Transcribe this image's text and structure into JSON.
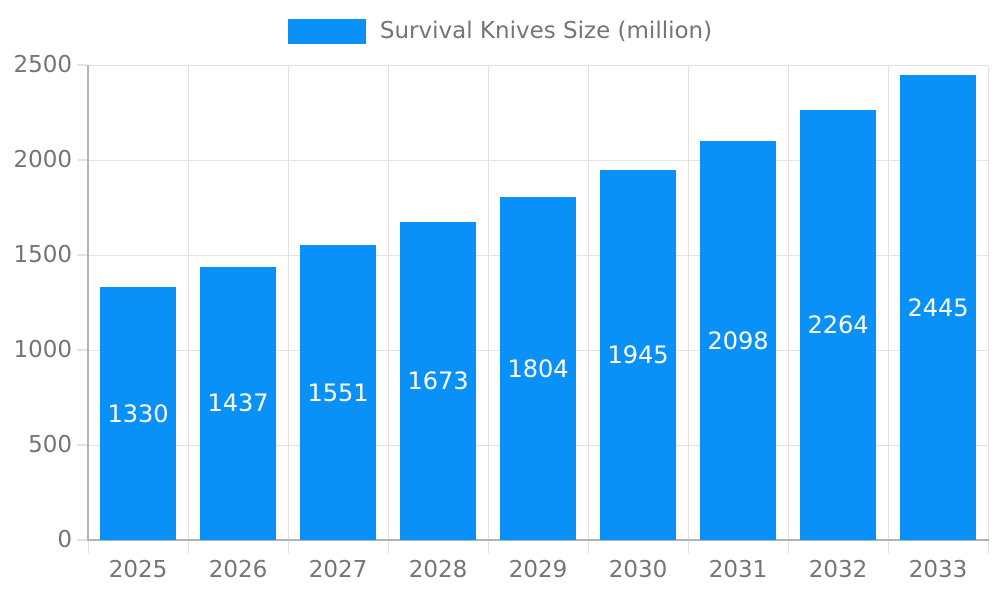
{
  "chart_data": {
    "type": "bar",
    "title": "",
    "legend": "Survival Knives Size (million)",
    "legend_position": "top",
    "categories": [
      "2025",
      "2026",
      "2027",
      "2028",
      "2029",
      "2030",
      "2031",
      "2032",
      "2033"
    ],
    "values": [
      1330,
      1437,
      1551,
      1673,
      1804,
      1945,
      2098,
      2264,
      2445
    ],
    "series": [
      {
        "name": "Survival Knives Size (million)",
        "values": [
          1330,
          1437,
          1551,
          1673,
          1804,
          1945,
          2098,
          2264,
          2445
        ]
      }
    ],
    "xlabel": "",
    "ylabel": "",
    "ylim": [
      0,
      2500
    ],
    "yticks": [
      0,
      500,
      1000,
      1500,
      2000,
      2500
    ],
    "grid": true,
    "value_labels": "inside-center",
    "colors": {
      "bar": "#0991f8",
      "grid": "#e2e2e2",
      "axis": "#b3b3b3",
      "tick_text": "#757575",
      "value_text": "#ffffff",
      "background": "#ffffff"
    }
  }
}
